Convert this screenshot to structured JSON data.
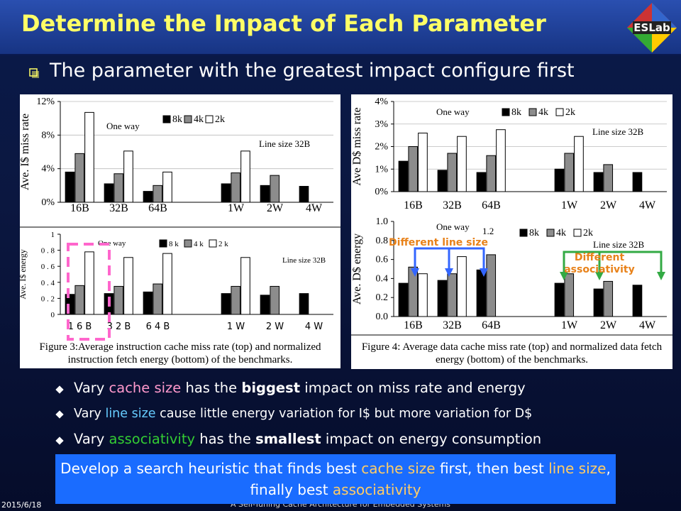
{
  "slide": {
    "title": "Determine the Impact of Each Parameter",
    "logo": "ESLab",
    "main_bullet": "The parameter with the greatest impact configure first",
    "bullets": [
      {
        "segments": [
          {
            "text": "Vary ",
            "color": "#ffffff"
          },
          {
            "text": "cache size",
            "color": "#ff99cc"
          },
          {
            "text": " has the ",
            "color": "#ffffff"
          },
          {
            "text": "biggest",
            "color": "#ffffff",
            "bold": true
          },
          {
            "text": " impact on miss rate and energy",
            "color": "#ffffff"
          }
        ]
      },
      {
        "segments": [
          {
            "text": "Vary ",
            "color": "#ffffff"
          },
          {
            "text": "line size",
            "color": "#66ccff"
          },
          {
            "text": " cause little energy variation for I$ but more variation for D$",
            "color": "#ffffff"
          }
        ]
      },
      {
        "segments": [
          {
            "text": "Vary ",
            "color": "#ffffff"
          },
          {
            "text": "associativity",
            "color": "#33cc33"
          },
          {
            "text": " has the ",
            "color": "#ffffff"
          },
          {
            "text": "smallest",
            "color": "#ffffff",
            "bold": true
          },
          {
            "text": " impact on energy consumption",
            "color": "#ffffff"
          }
        ]
      }
    ],
    "conclusion": {
      "segments": [
        {
          "text": "Develop a search heuristic that finds best ",
          "color": "#ffffff"
        },
        {
          "text": "cache size",
          "color": "#ffcc66"
        },
        {
          "text": " first, then best ",
          "color": "#ffffff"
        },
        {
          "text": "line size",
          "color": "#ffcc66"
        },
        {
          "text": ", finally best ",
          "color": "#ffffff"
        },
        {
          "text": "associativity",
          "color": "#ffcc66"
        }
      ]
    },
    "date": "2015/6/18",
    "footer": "A Self-Tuning Cache Architecture for Embedded Systems"
  },
  "figures": [
    {
      "caption": "Figure 3:Average instruction cache miss rate (top) and normalized instruction fetch energy (bottom) of the benchmarks.",
      "charts": [
        {
          "type": "bar",
          "y_label": "Ave. I$ miss rate",
          "grid": true,
          "ylim": [
            0,
            12
          ],
          "yticks": [
            {
              "value": 0,
              "label": "0%"
            },
            {
              "value": 4,
              "label": "4%"
            },
            {
              "value": 8,
              "label": "8%"
            },
            {
              "value": 12,
              "label": "12%"
            }
          ],
          "categories": [
            "16B",
            "32B",
            "64B",
            null,
            "1W",
            "2W",
            "4W"
          ],
          "series": [
            {
              "name": "8k",
              "color": "#000000",
              "values": [
                3.6,
                2.2,
                1.3,
                null,
                2.2,
                2.0,
                1.9
              ]
            },
            {
              "name": "4k",
              "color": "#8c8c8c",
              "values": [
                5.8,
                3.4,
                2.0,
                null,
                3.5,
                3.2,
                null
              ]
            },
            {
              "name": "2k",
              "color": "#ffffff",
              "values": [
                10.7,
                6.1,
                3.6,
                null,
                6.1,
                null,
                null
              ]
            }
          ],
          "annotations": [
            "One way",
            "Line size 32B"
          ]
        },
        {
          "type": "bar",
          "y_label": "Ave. I$ energy",
          "grid": false,
          "ylim": [
            0,
            1
          ],
          "yticks": [
            0,
            {
              "value": 0.2,
              "label": "0 . 2"
            },
            {
              "value": 0.4,
              "label": "0 . 4"
            },
            {
              "value": 0.6,
              "label": "0 . 6"
            },
            {
              "value": 0.8,
              "label": "0 . 8"
            },
            1
          ],
          "categories": [
            "1 6 B",
            "3 2 B",
            "6 4 B",
            null,
            "1 W",
            "2 W",
            "4 W"
          ],
          "series": [
            {
              "name": "8 k",
              "color": "#000000",
              "values": [
                0.25,
                0.26,
                0.28,
                null,
                0.26,
                0.24,
                0.26
              ]
            },
            {
              "name": "4 k",
              "color": "#8c8c8c",
              "values": [
                0.36,
                0.35,
                0.38,
                null,
                0.35,
                0.35,
                null
              ]
            },
            {
              "name": "2 k",
              "color": "#ffffff",
              "values": [
                0.78,
                0.71,
                0.76,
                null,
                0.71,
                null,
                null
              ]
            }
          ],
          "annotations": [
            "One way",
            "Line size 32B"
          ]
        }
      ]
    },
    {
      "caption": "Figure 4: Average data cache miss rate (top) and normalized data fetch energy (bottom) of the benchmarks.",
      "charts": [
        {
          "type": "bar",
          "y_label": "Ave D$ miss rate",
          "grid": true,
          "ylim": [
            0,
            4
          ],
          "yticks": [
            {
              "value": 0,
              "label": "0%"
            },
            {
              "value": 1,
              "label": "1%"
            },
            {
              "value": 2,
              "label": "2%"
            },
            {
              "value": 3,
              "label": "3%"
            },
            {
              "value": 4,
              "label": "4%"
            }
          ],
          "categories": [
            "16B",
            "32B",
            "64B",
            null,
            "1W",
            "2W",
            "4W"
          ],
          "series": [
            {
              "name": "8k",
              "color": "#000000",
              "values": [
                1.35,
                0.95,
                0.85,
                null,
                1.0,
                0.85,
                0.85
              ]
            },
            {
              "name": "4k",
              "color": "#8c8c8c",
              "values": [
                2.0,
                1.7,
                1.6,
                null,
                1.7,
                1.2,
                null
              ]
            },
            {
              "name": "2k",
              "color": "#ffffff",
              "values": [
                2.6,
                2.45,
                2.75,
                null,
                2.45,
                null,
                null
              ]
            }
          ],
          "annotations": [
            "One way",
            "Line size 32B"
          ]
        },
        {
          "type": "bar",
          "y_label": "Ave. D$ energy",
          "grid": false,
          "ylim": [
            0,
            1
          ],
          "yticks": [
            {
              "value": 0,
              "label": "0.0"
            },
            0.2,
            0.4,
            0.6,
            0.8,
            {
              "value": 1,
              "label": "1.0"
            }
          ],
          "categories": [
            "16B",
            "32B",
            "64B",
            null,
            "1W",
            "2W",
            "4W"
          ],
          "series": [
            {
              "name": "8k",
              "color": "#000000",
              "values": [
                0.35,
                0.38,
                0.49,
                null,
                0.35,
                0.29,
                0.33
              ]
            },
            {
              "name": "4k",
              "color": "#8c8c8c",
              "values": [
                0.52,
                0.45,
                0.65,
                null,
                0.45,
                0.37,
                null
              ]
            },
            {
              "name": "2k",
              "color": "#ffffff",
              "values": [
                0.45,
                0.63,
                null,
                null,
                null,
                null,
                null
              ]
            }
          ],
          "annotations": [
            "One way",
            "Line size 32B",
            "1.2"
          ],
          "callouts": [
            "Different line size",
            "Different associativity"
          ]
        }
      ]
    }
  ]
}
